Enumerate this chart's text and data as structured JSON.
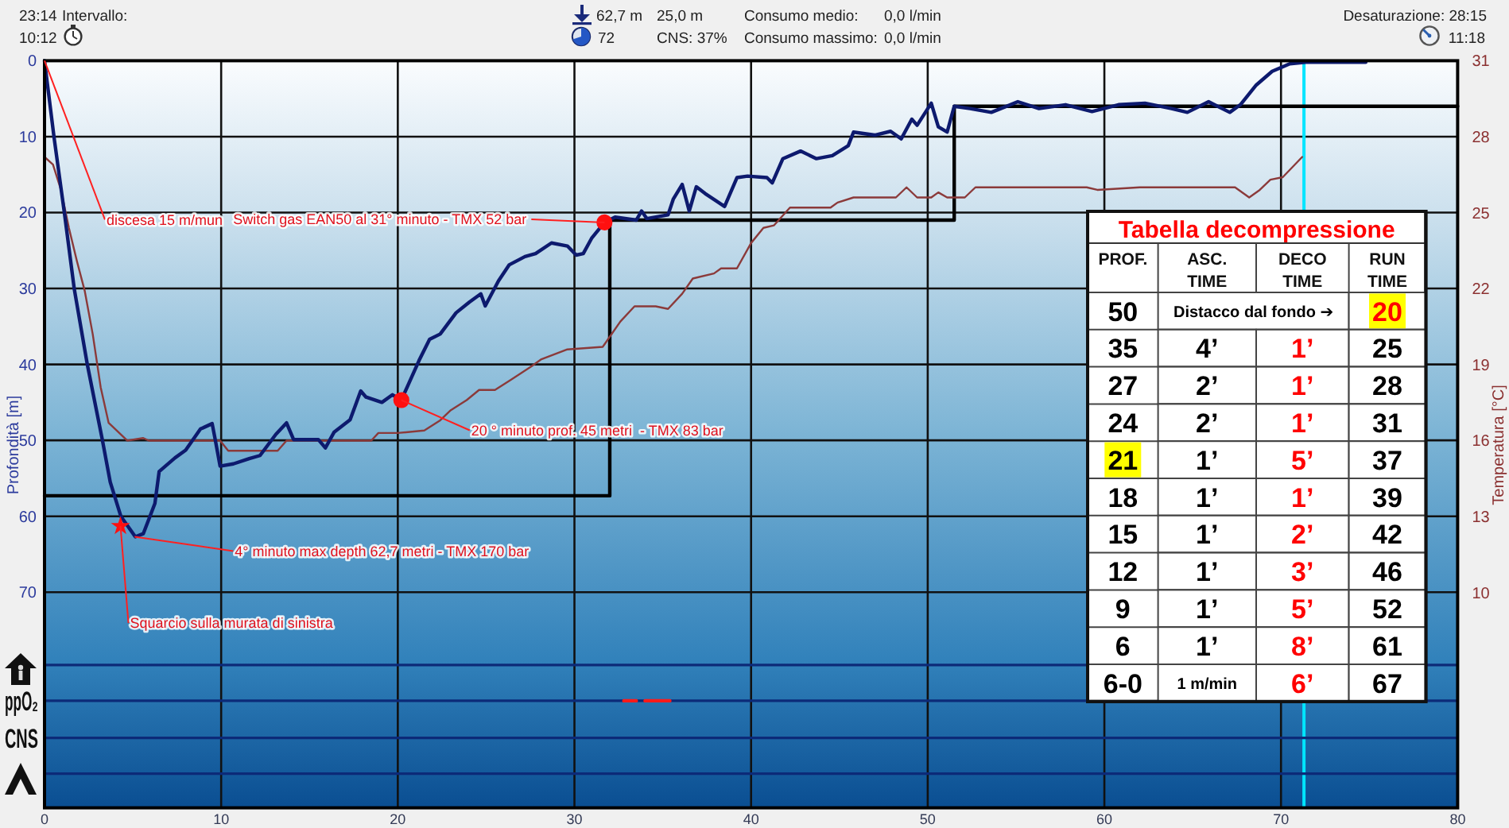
{
  "chart_data": [
    {
      "type": "line",
      "ylabel": "Profondità [m]",
      "y2label": "Temperatura [°C]",
      "xlim": [
        0,
        80
      ],
      "xticks": [
        0,
        10,
        20,
        30,
        40,
        50,
        60,
        70,
        80
      ],
      "ylim": [
        98.4,
        0
      ],
      "yticks": [
        0,
        10,
        20,
        30,
        40,
        50,
        60,
        70
      ],
      "y2lim": [
        1.5,
        31
      ],
      "y2ticks": [
        10,
        13,
        16,
        19,
        22,
        25,
        28,
        31
      ],
      "grid": true,
      "series": [
        {
          "type": "line",
          "color": "#000000",
          "x": [
            0,
            32,
            32,
            51.5,
            51.5,
            80
          ],
          "values": [
            57.3,
            57.3,
            21,
            21,
            6,
            6
          ]
        },
        {
          "type": "line",
          "axis": "y2",
          "color": "#8b3a3a",
          "x": [
            0,
            0.48,
            0.93,
            1.38,
            1.83,
            2.28,
            2.73,
            3.18,
            3.63,
            4.08,
            4.68,
            5.59,
            5.9,
            9.94,
            10.4,
            13.2,
            13.7,
            18.5,
            18.9,
            20.0,
            21.5,
            22.4,
            23.0,
            23.9,
            24.6,
            25.5,
            26.4,
            27.5,
            28.1,
            29.6,
            31.6,
            32.0,
            32.6,
            33.4,
            34.6,
            35.3,
            36.1,
            36.7,
            37.9,
            38.3,
            39.2,
            40.0,
            40.7,
            41.3,
            42.2,
            44.5,
            44.9,
            45.8,
            48.2,
            48.8,
            49.4,
            50.2,
            50.6,
            51.1,
            52.1,
            52.7,
            59.0,
            59.6,
            62.0,
            67.4,
            68.2,
            68.8,
            69.4,
            70.1,
            71.2
          ],
          "values": [
            27.2,
            26.9,
            25.9,
            24.4,
            23.1,
            21.9,
            20.2,
            18.1,
            16.7,
            16.4,
            16.0,
            16.1,
            16.0,
            16.0,
            15.6,
            15.6,
            16.0,
            16.0,
            16.3,
            16.3,
            16.4,
            16.8,
            17.2,
            17.6,
            18.0,
            18.0,
            18.4,
            18.9,
            19.2,
            19.6,
            19.7,
            20.1,
            20.7,
            21.3,
            21.3,
            21.2,
            21.8,
            22.4,
            22.6,
            22.8,
            22.8,
            23.8,
            24.4,
            24.5,
            25.2,
            25.2,
            25.4,
            25.6,
            25.6,
            26.0,
            25.6,
            25.6,
            25.8,
            25.6,
            25.6,
            26.0,
            26.0,
            25.9,
            26.0,
            26.0,
            25.6,
            25.9,
            26.3,
            26.4,
            27.2
          ]
        },
        {
          "type": "line",
          "color": "#0d1a6e",
          "x": [
            0,
            0.54,
            1.14,
            1.68,
            2.43,
            3.27,
            3.72,
            4.32,
            5.14,
            5.59,
            6.25,
            6.49,
            7.39,
            7.99,
            8.83,
            9.49,
            9.64,
            9.94,
            10.69,
            11.59,
            12.2,
            13.1,
            13.7,
            14.1,
            15.5,
            15.9,
            16.4,
            17.3,
            17.9,
            18.2,
            19.1,
            19.7,
            20.2,
            21.2,
            21.8,
            22.4,
            23.3,
            24.05,
            24.7,
            24.95,
            25.7,
            26.3,
            27.2,
            27.8,
            28.7,
            29.6,
            30.1,
            30.5,
            30.97,
            31.7,
            32.3,
            33.5,
            33.8,
            34.1,
            35.3,
            35.6,
            36.1,
            36.5,
            36.9,
            37.4,
            38.5,
            39.2,
            39.8,
            40.9,
            41.2,
            41.8,
            42.8,
            43.7,
            44.6,
            45.5,
            45.8,
            47.0,
            47.9,
            48.5,
            49.1,
            49.4,
            50.2,
            50.6,
            51.1,
            51.5,
            52.4,
            53.6,
            55.1,
            56.3,
            57.8,
            59.3,
            60.8,
            62.3,
            63.8,
            64.7,
            65.9,
            67.1,
            67.7,
            68.6,
            69.5,
            70.5,
            71.4,
            74.8
          ],
          "values": [
            0,
            10.1,
            20.3,
            30.0,
            40.1,
            49.9,
            55.5,
            60.0,
            62.7,
            62.3,
            58.3,
            54.1,
            52.3,
            51.3,
            48.5,
            47.8,
            49.6,
            53.4,
            53.1,
            52.4,
            52.0,
            49.2,
            47.7,
            49.9,
            49.9,
            51.0,
            48.9,
            47.3,
            43.5,
            44.3,
            45.0,
            44.0,
            44.7,
            39.5,
            36.7,
            36.0,
            33.2,
            31.8,
            30.7,
            32.3,
            29.0,
            26.9,
            25.8,
            25.4,
            24.0,
            24.4,
            25.6,
            25.4,
            23.4,
            21.3,
            20.6,
            21.0,
            19.8,
            20.8,
            20.3,
            18.2,
            16.3,
            19.8,
            16.6,
            17.5,
            19.2,
            15.4,
            15.2,
            15.4,
            16.1,
            12.9,
            11.9,
            12.9,
            12.5,
            11.2,
            9.4,
            9.8,
            9.3,
            10.3,
            7.7,
            8.5,
            5.6,
            8.7,
            9.4,
            6.0,
            6.3,
            6.8,
            5.4,
            6.3,
            5.8,
            6.7,
            5.8,
            5.6,
            6.3,
            6.8,
            5.4,
            6.8,
            5.8,
            3.2,
            1.4,
            0.4,
            0.2,
            0.2
          ]
        },
        {
          "type": "line",
          "color": "#ff1a1a",
          "x": [
            32.8,
            33.5,
            33.7,
            34.0,
            35.4
          ],
          "values": [
            84.3,
            84.3,
            null,
            84.3,
            84.3
          ]
        },
        {
          "type": "scatter",
          "marker": "circle",
          "color": "#ff1010",
          "x": [
            31.7,
            20.2
          ],
          "values": [
            21.3,
            44.7
          ]
        },
        {
          "type": "scatter",
          "marker": "star",
          "color": "#ff1010",
          "x": [
            4.3
          ],
          "values": [
            61.3
          ]
        }
      ],
      "ref_lines": [
        {
          "axis": "x",
          "value": 71.3,
          "color": "#00e5ff"
        },
        {
          "axis": "y",
          "value": 79.6,
          "color": "#0c2a78"
        },
        {
          "axis": "y",
          "value": 84.3,
          "label": "ppO₂",
          "color": "#0c2a78"
        },
        {
          "axis": "y",
          "value": 89.2,
          "label": "CNS",
          "color": "#0c2a78"
        },
        {
          "axis": "y",
          "value": 93.9,
          "color": "#0c2a78"
        }
      ],
      "annotations": [
        "23:14",
        "Intervallo:",
        "10:12",
        "62,7 m",
        "25,0 m",
        "72",
        "CNS: 37%",
        "Consumo medio:",
        "0,0 l/min",
        "Consumo massimo:",
        "0,0 l/min",
        "Desaturazione: 28:15",
        "11:18",
        {
          "text": "discesa 15 m/mun",
          "x": 0,
          "y": 0
        },
        {
          "text": "Switch gas EAN50 al 31° minuto - TMX 52 bar",
          "x": 31.7,
          "y": 21.3
        },
        {
          "text": "20 ° minuto prof. 45 metri  - TMX 83 bar",
          "x": 20.2,
          "y": 44.7
        },
        {
          "text": "4° minuto max depth 62,7 metri - TMX 170 bar",
          "x": 5.1,
          "y": 62.7
        },
        {
          "text": "Squarcio sulla murata di sinistra",
          "x": 4.3,
          "y": 61.3
        }
      ]
    },
    {
      "type": "heatmap",
      "title": "Tabella decompressione",
      "ylabel": "PROF.",
      "categories": [
        "ASC. TIME",
        "DECO TIME",
        "RUN TIME"
      ],
      "y_categories": [
        "50",
        "35",
        "27",
        "24",
        "21",
        "18",
        "15",
        "12",
        "9",
        "6",
        "6-0"
      ],
      "colors": [
        "#000000",
        "#ff0000",
        "#000000"
      ],
      "cells": [
        [
          null,
          null,
          null
        ],
        [
          null,
          null,
          null
        ],
        [
          null,
          null,
          null
        ],
        [
          null,
          null,
          null
        ],
        [
          null,
          null,
          null
        ],
        [
          null,
          null,
          null
        ],
        [
          null,
          null,
          null
        ],
        [
          null,
          null,
          null
        ],
        [
          null,
          null,
          null
        ],
        [
          null,
          null,
          null
        ],
        [
          null,
          null,
          null
        ]
      ],
      "cell_labels": [
        [
          "Distacco dal fondo ➔",
          null,
          "20"
        ],
        [
          "4’",
          "1’",
          "25"
        ],
        [
          "2’",
          "1’",
          "28"
        ],
        [
          "2’",
          "1’",
          "31"
        ],
        [
          "1’",
          "5’",
          "37"
        ],
        [
          "1’",
          "1’",
          "39"
        ],
        [
          "1’",
          "2’",
          "42"
        ],
        [
          "1’",
          "3’",
          "46"
        ],
        [
          "1’",
          "5’",
          "52"
        ],
        [
          "1’",
          "8’",
          "61"
        ],
        [
          "1 m/min",
          "6’",
          "67"
        ]
      ]
    }
  ]
}
